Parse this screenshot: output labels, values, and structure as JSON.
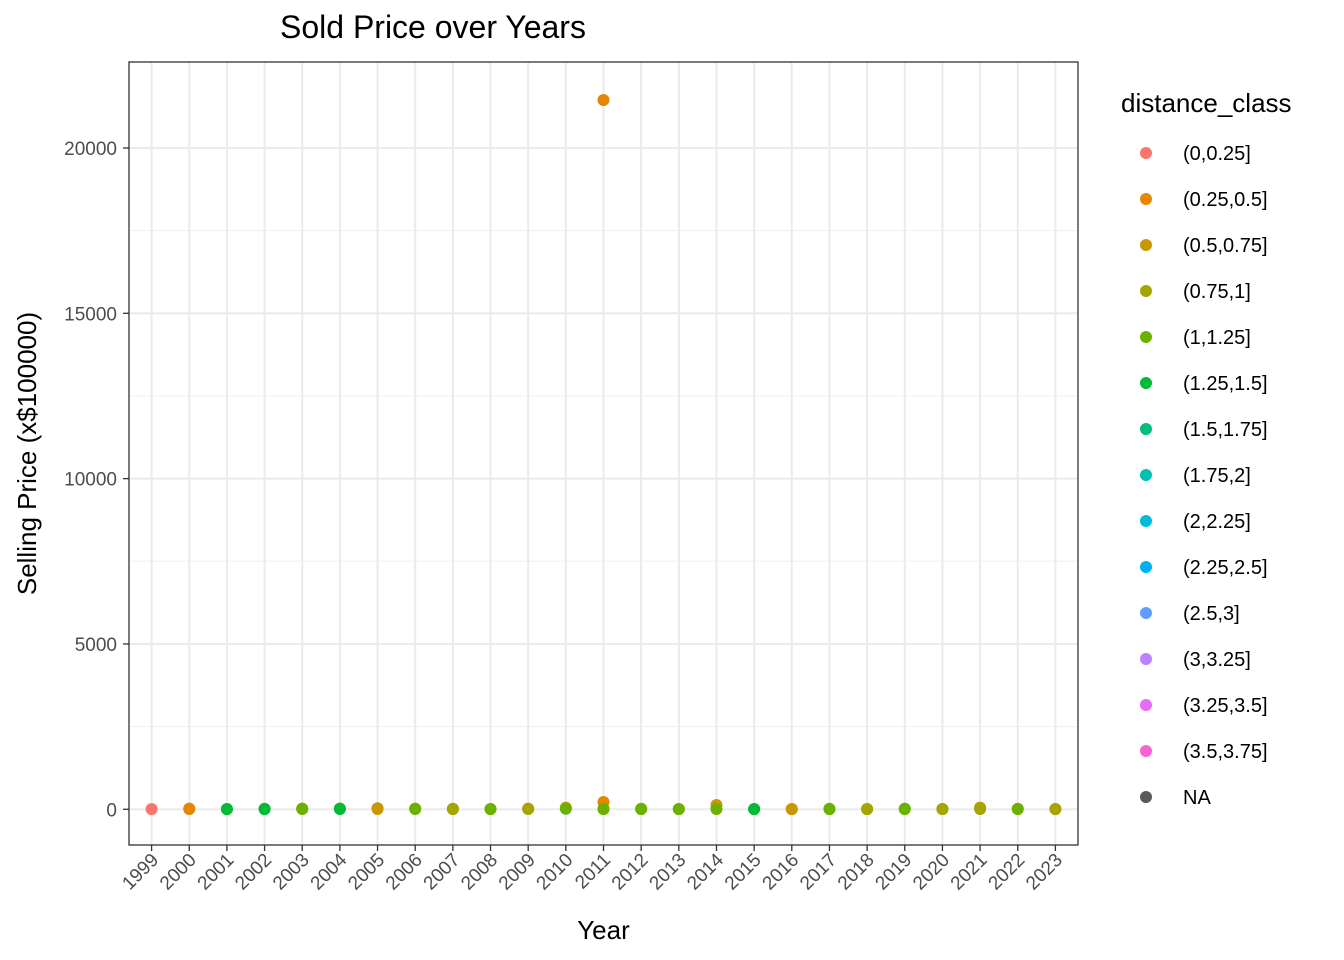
{
  "chart_data": {
    "type": "scatter",
    "title": "Sold Price over Years",
    "xlabel": "Year",
    "ylabel": "Selling Price (x$100000)",
    "x_categories": [
      "1999",
      "2000",
      "2001",
      "2002",
      "2003",
      "2004",
      "2005",
      "2006",
      "2007",
      "2008",
      "2009",
      "2010",
      "2011",
      "2012",
      "2013",
      "2014",
      "2015",
      "2016",
      "2017",
      "2018",
      "2019",
      "2020",
      "2021",
      "2022",
      "2023"
    ],
    "y_ticks": [
      0,
      5000,
      10000,
      15000,
      20000
    ],
    "ylim": [
      -1080,
      22600
    ],
    "grid": true,
    "legend": {
      "title": "distance_class",
      "placement": "right",
      "entries": [
        {
          "label": "(0,0.25]",
          "color": "#F8766D"
        },
        {
          "label": "(0.25,0.5]",
          "color": "#E58700"
        },
        {
          "label": "(0.5,0.75]",
          "color": "#C99800"
        },
        {
          "label": "(0.75,1]",
          "color": "#A3A500"
        },
        {
          "label": "(1,1.25]",
          "color": "#6BB100"
        },
        {
          "label": "(1.25,1.5]",
          "color": "#00BA38"
        },
        {
          "label": "(1.5,1.75]",
          "color": "#00BF7D"
        },
        {
          "label": "(1.75,2]",
          "color": "#00C0AF"
        },
        {
          "label": "(2,2.25]",
          "color": "#00BCD8"
        },
        {
          "label": "(2.25,2.5]",
          "color": "#00B0F6"
        },
        {
          "label": "(2.5,3]",
          "color": "#619CFF"
        },
        {
          "label": "(3,3.25]",
          "color": "#B983FF"
        },
        {
          "label": "(3.25,3.5]",
          "color": "#E76BF3"
        },
        {
          "label": "(3.5,3.75]",
          "color": "#FD61D1"
        },
        {
          "label": "NA",
          "color": "#595959"
        }
      ]
    },
    "points": [
      {
        "x": "1999",
        "y": 5,
        "class": "(0,0.25]"
      },
      {
        "x": "2000",
        "y": 10,
        "class": "(0.5,0.75]"
      },
      {
        "x": "2000",
        "y": 20,
        "class": "(0.25,0.5]"
      },
      {
        "x": "2001",
        "y": 10,
        "class": "(1,1.25]"
      },
      {
        "x": "2001",
        "y": 5,
        "class": "(1.25,1.5]"
      },
      {
        "x": "2002",
        "y": 15,
        "class": "(1,1.25]"
      },
      {
        "x": "2002",
        "y": 5,
        "class": "(1.25,1.5]"
      },
      {
        "x": "2003",
        "y": 20,
        "class": "(0.75,1]"
      },
      {
        "x": "2003",
        "y": 10,
        "class": "(1,1.25]"
      },
      {
        "x": "2004",
        "y": 25,
        "class": "(1,1.25]"
      },
      {
        "x": "2004",
        "y": 10,
        "class": "(1.25,1.5]"
      },
      {
        "x": "2005",
        "y": 30,
        "class": "(0.75,1]"
      },
      {
        "x": "2005",
        "y": 10,
        "class": "(0.5,0.75]"
      },
      {
        "x": "2006",
        "y": 20,
        "class": "(0.75,1]"
      },
      {
        "x": "2006",
        "y": 10,
        "class": "(1,1.25]"
      },
      {
        "x": "2007",
        "y": 15,
        "class": "(1,1.25]"
      },
      {
        "x": "2007",
        "y": 5,
        "class": "(0.75,1]"
      },
      {
        "x": "2008",
        "y": 10,
        "class": "(0.5,0.75]"
      },
      {
        "x": "2008",
        "y": 5,
        "class": "(1,1.25]"
      },
      {
        "x": "2009",
        "y": 20,
        "class": "(0.5,0.75]"
      },
      {
        "x": "2009",
        "y": 10,
        "class": "(0.75,1]"
      },
      {
        "x": "2010",
        "y": 50,
        "class": "(0.5,0.75]"
      },
      {
        "x": "2010",
        "y": 15,
        "class": "(1,1.25]"
      },
      {
        "x": "2011",
        "y": 21450,
        "class": "(0.25,0.5]"
      },
      {
        "x": "2011",
        "y": 220,
        "class": "(0.25,0.5]"
      },
      {
        "x": "2011",
        "y": 20,
        "class": "(0.75,1]"
      },
      {
        "x": "2011",
        "y": 5,
        "class": "(1,1.25]"
      },
      {
        "x": "2012",
        "y": 15,
        "class": "(0.75,1]"
      },
      {
        "x": "2012",
        "y": 5,
        "class": "(1,1.25]"
      },
      {
        "x": "2013",
        "y": 10,
        "class": "(0.75,1]"
      },
      {
        "x": "2013",
        "y": 5,
        "class": "(1,1.25]"
      },
      {
        "x": "2014",
        "y": 130,
        "class": "(0.5,0.75]"
      },
      {
        "x": "2014",
        "y": 10,
        "class": "(1,1.25]"
      },
      {
        "x": "2015",
        "y": 10,
        "class": "(1,1.25]"
      },
      {
        "x": "2015",
        "y": 5,
        "class": "(1.25,1.5]"
      },
      {
        "x": "2016",
        "y": 10,
        "class": "(0.75,1]"
      },
      {
        "x": "2016",
        "y": 5,
        "class": "(0.5,0.75]"
      },
      {
        "x": "2017",
        "y": 15,
        "class": "(0.75,1]"
      },
      {
        "x": "2017",
        "y": 5,
        "class": "(1,1.25]"
      },
      {
        "x": "2018",
        "y": 10,
        "class": "(1,1.25]"
      },
      {
        "x": "2018",
        "y": 5,
        "class": "(0.75,1]"
      },
      {
        "x": "2019",
        "y": 15,
        "class": "(1.25,1.5]"
      },
      {
        "x": "2019",
        "y": 5,
        "class": "(1,1.25]"
      },
      {
        "x": "2020",
        "y": 10,
        "class": "(1,1.25]"
      },
      {
        "x": "2020",
        "y": 5,
        "class": "(0.75,1]"
      },
      {
        "x": "2021",
        "y": 50,
        "class": "(0.5,0.75]"
      },
      {
        "x": "2021",
        "y": 10,
        "class": "(0.75,1]"
      },
      {
        "x": "2022",
        "y": 15,
        "class": "(0.75,1]"
      },
      {
        "x": "2022",
        "y": 5,
        "class": "(1,1.25]"
      },
      {
        "x": "2023",
        "y": 10,
        "class": "(0.5,0.75]"
      },
      {
        "x": "2023",
        "y": 5,
        "class": "(0.75,1]"
      }
    ]
  }
}
